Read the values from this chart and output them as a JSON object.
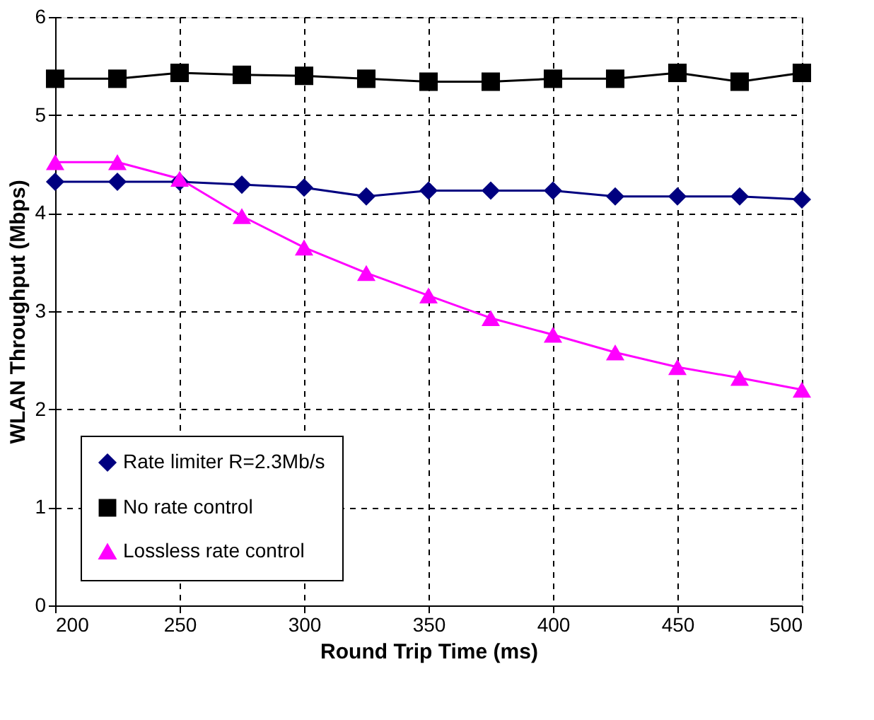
{
  "chart_data": {
    "type": "line",
    "xlabel": "Round Trip Time (ms)",
    "ylabel": "WLAN Throughput (Mbps)",
    "x": [
      200,
      225,
      250,
      275,
      300,
      325,
      350,
      375,
      400,
      425,
      450,
      475,
      500
    ],
    "xlim": [
      200,
      500
    ],
    "xticks": [
      200,
      250,
      300,
      350,
      400,
      450,
      500
    ],
    "ylim": [
      0,
      6
    ],
    "yticks": [
      0,
      1,
      2,
      3,
      4,
      5,
      6
    ],
    "grid": true,
    "legend": "bottom left",
    "line_style": "solid",
    "series": [
      {
        "name": "Rate limiter R=2.3Mb/s",
        "color": "#000080",
        "marker": "diamond",
        "values": [
          4.32,
          4.32,
          4.32,
          4.29,
          4.26,
          4.17,
          4.23,
          4.23,
          4.23,
          4.17,
          4.17,
          4.17,
          4.14
        ]
      },
      {
        "name": "No rate control",
        "color": "#000000",
        "marker": "square",
        "values": [
          5.37,
          5.37,
          5.43,
          5.41,
          5.4,
          5.37,
          5.34,
          5.34,
          5.37,
          5.37,
          5.43,
          5.34,
          5.43
        ]
      },
      {
        "name": "Lossless rate control",
        "color": "#ff00ff",
        "marker": "triangle",
        "values": [
          4.52,
          4.52,
          4.35,
          3.97,
          3.65,
          3.39,
          3.16,
          2.93,
          2.76,
          2.58,
          2.43,
          2.32,
          2.2
        ]
      }
    ]
  }
}
